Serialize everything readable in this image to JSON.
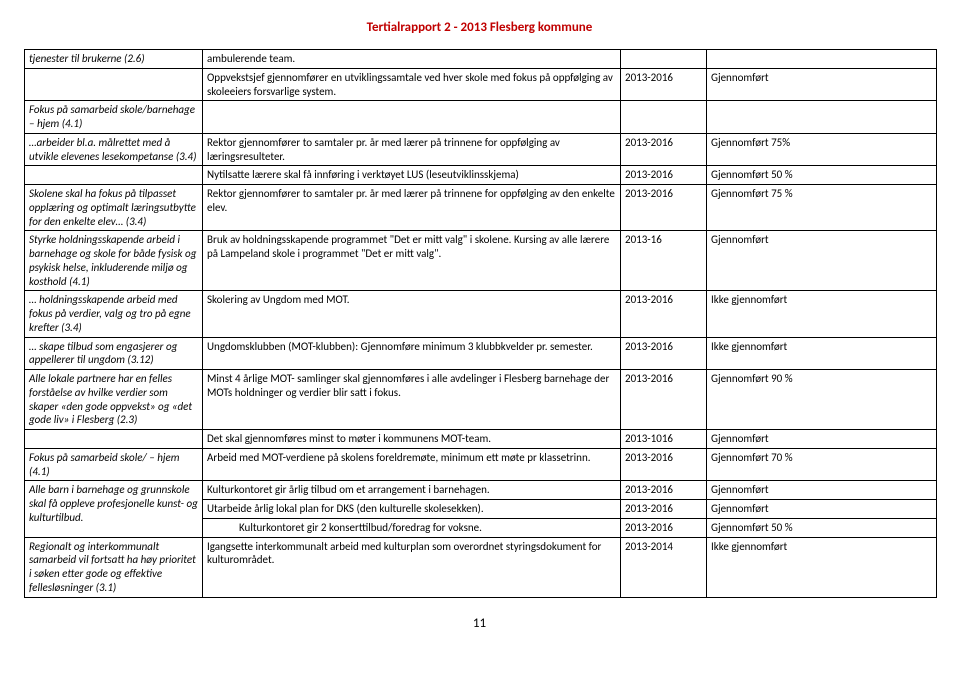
{
  "header": "Tertialrapport 2 - 2013 Flesberg kommune",
  "footer": "11",
  "table": {
    "rows": [
      {
        "c1": "tjenester til brukerne (2.6)",
        "c2": "ambulerende team.",
        "c3": "",
        "c4": ""
      },
      {
        "c1": "",
        "c2": "Oppvekstsjef gjennomfører en utviklingssamtale ved hver skole med fokus på oppfølging av skoleeiers forsvarlige system.",
        "c3": "2013-2016",
        "c4": "Gjennomført"
      },
      {
        "c1": "Fokus på samarbeid skole/barnehage – hjem (4.1)",
        "c2": "",
        "c3": "",
        "c4": ""
      },
      {
        "c1": "…arbeider bl.a. målrettet med å utvikle elevenes lesekompetanse (3.4)",
        "c2": "Rektor gjennomfører to samtaler pr. år med lærer på trinnene for oppfølging av læringsresulteter.",
        "c3": "2013-2016",
        "c4": "Gjennomført 75%"
      },
      {
        "c1": "",
        "c2": "Nytilsatte lærere skal få innføring i verktøyet LUS (leseutviklinsskjema)",
        "c3": "2013-2016",
        "c4": "Gjennomført 50 %"
      },
      {
        "c1": "Skolene skal ha fokus på tilpasset opplæring og optimalt læringsutbytte for den enkelte elev… (3.4)",
        "c2": "Rektor gjennomfører to samtaler pr. år med lærer på trinnene for oppfølging av den enkelte elev.",
        "c3": "2013-2016",
        "c4": "Gjennomført 75 %"
      },
      {
        "c1": "Styrke holdningsskapende arbeid i barnehage og skole for både fysisk og psykisk helse, inkluderende miljø og kosthold (4.1)",
        "c2": "Bruk av holdningsskapende programmet \"Det er mitt valg\" i skolene. Kursing av alle lærere på Lampeland skole i programmet \"Det er mitt valg\".",
        "c3": "2013-16",
        "c4": "Gjennomført"
      },
      {
        "c1": "… holdningsskapende arbeid med fokus på verdier, valg og tro på egne krefter (3.4)",
        "c2": "Skolering av Ungdom med MOT.",
        "c3": "2013-2016",
        "c4": "Ikke gjennomført"
      },
      {
        "c1": "… skape tilbud som engasjerer og appellerer til ungdom (3.12)",
        "c2": "Ungdomsklubben (MOT-klubben): Gjennomføre minimum 3 klubbkvelder pr. semester.",
        "c3": "2013-2016",
        "c4": "Ikke gjennomført"
      },
      {
        "c1": "Alle lokale partnere har en felles forståelse av hvilke verdier som skaper «den gode oppvekst» og «det gode liv» i Flesberg (2.3)",
        "c2": "Minst 4 årlige MOT- samlinger skal gjennomføres i alle avdelinger i Flesberg barnehage der MOTs holdninger og verdier blir satt i fokus.",
        "c3": "2013-2016",
        "c4": "Gjennomført 90 %"
      },
      {
        "c1": "",
        "c2": "Det skal gjennomføres minst to møter i kommunens MOT-team.",
        "c3": "2013-1016",
        "c4": "Gjennomført"
      },
      {
        "c1": "Fokus på samarbeid skole/ – hjem (4.1)",
        "c2": "Arbeid med MOT-verdiene på skolens foreldremøte, minimum ett møte pr klassetrinn.",
        "c3": "2013-2016",
        "c4": "Gjennomført 70 %"
      },
      {
        "c1": "Alle barn i barnehage og grunnskole skal få oppleve profesjonelle kunst- og kulturtilbud.",
        "c1_rowspan": 3,
        "c2": "Kulturkontoret gir årlig tilbud om et arrangement i barnehagen.",
        "c3": "2013-2016",
        "c4": "Gjennomført"
      },
      {
        "c2": "Utarbeide årlig lokal plan for DKS (den kulturelle skolesekken).",
        "c3": "2013-2016",
        "c4": "Gjennomført"
      },
      {
        "c2_indent": true,
        "c2": "Kulturkontoret gir 2 konserttilbud/foredrag for voksne.",
        "c3": "2013-2016",
        "c4": "Gjennomført 50 %"
      },
      {
        "c1": "Regionalt og interkommunalt samarbeid vil fortsatt ha høy prioritet i søken etter gode og effektive fellesløsninger (3.1)",
        "c2": "Igangsette interkommunalt arbeid med kulturplan som overordnet styringsdokument for kulturområdet.",
        "c3": "2013-2014",
        "c4": "Ikke gjennomført"
      }
    ]
  },
  "style": {
    "header_color": "#c00000",
    "border_color": "#000000",
    "background": "#ffffff",
    "font_size_body": 11,
    "font_size_header": 13
  }
}
